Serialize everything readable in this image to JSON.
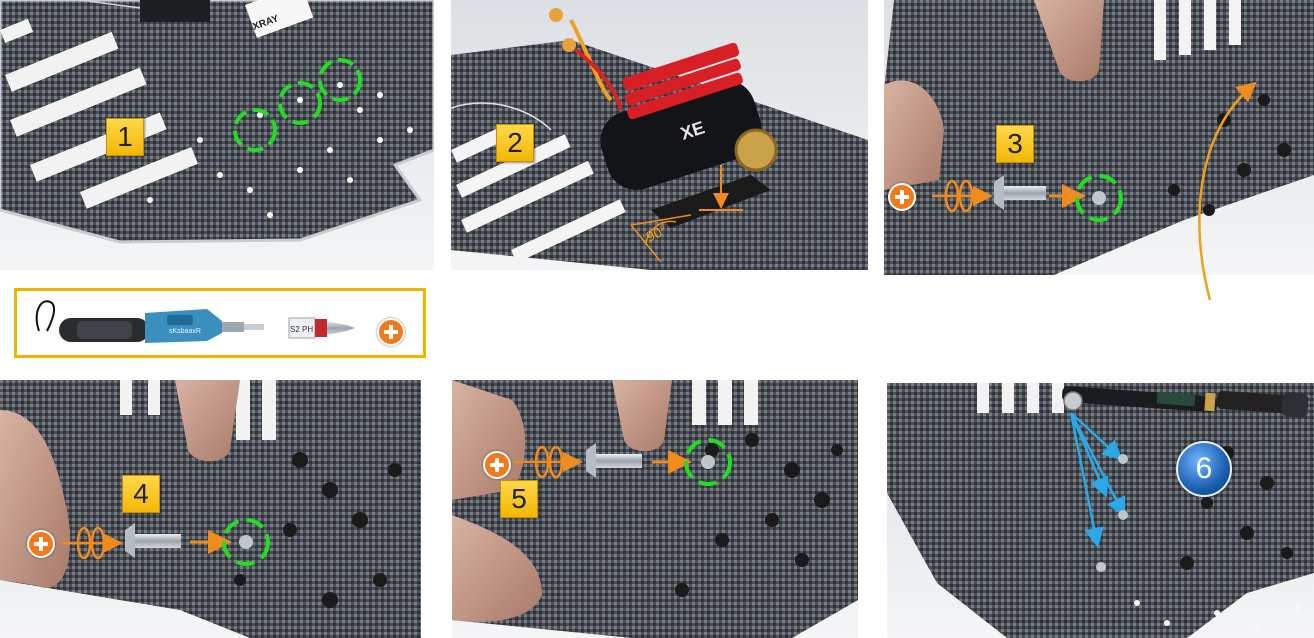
{
  "steps": [
    {
      "number": "1"
    },
    {
      "number": "2"
    },
    {
      "number": "3"
    },
    {
      "number": "4"
    },
    {
      "number": "5"
    },
    {
      "number": "6"
    }
  ],
  "motor": {
    "label": "XE"
  },
  "angle": {
    "label": "90°"
  },
  "tools": {
    "bit_label": "S2 PH",
    "driver_brand": "sKsbaaxR"
  },
  "decal": {
    "label": "XRAY"
  },
  "colors": {
    "accent_orange": "#f08c1e",
    "highlight_green": "#22dd22",
    "badge_yellow": "#f2b705",
    "torque_arrow_blue": "#2aa8e8"
  },
  "icons": [
    "phillips-plus-icon",
    "rotate-arrow-icon",
    "screw-icon",
    "mount-hole-circle-icon",
    "electric-screwdriver-icon",
    "phillips-bit-icon",
    "torque-wrench-icon"
  ]
}
